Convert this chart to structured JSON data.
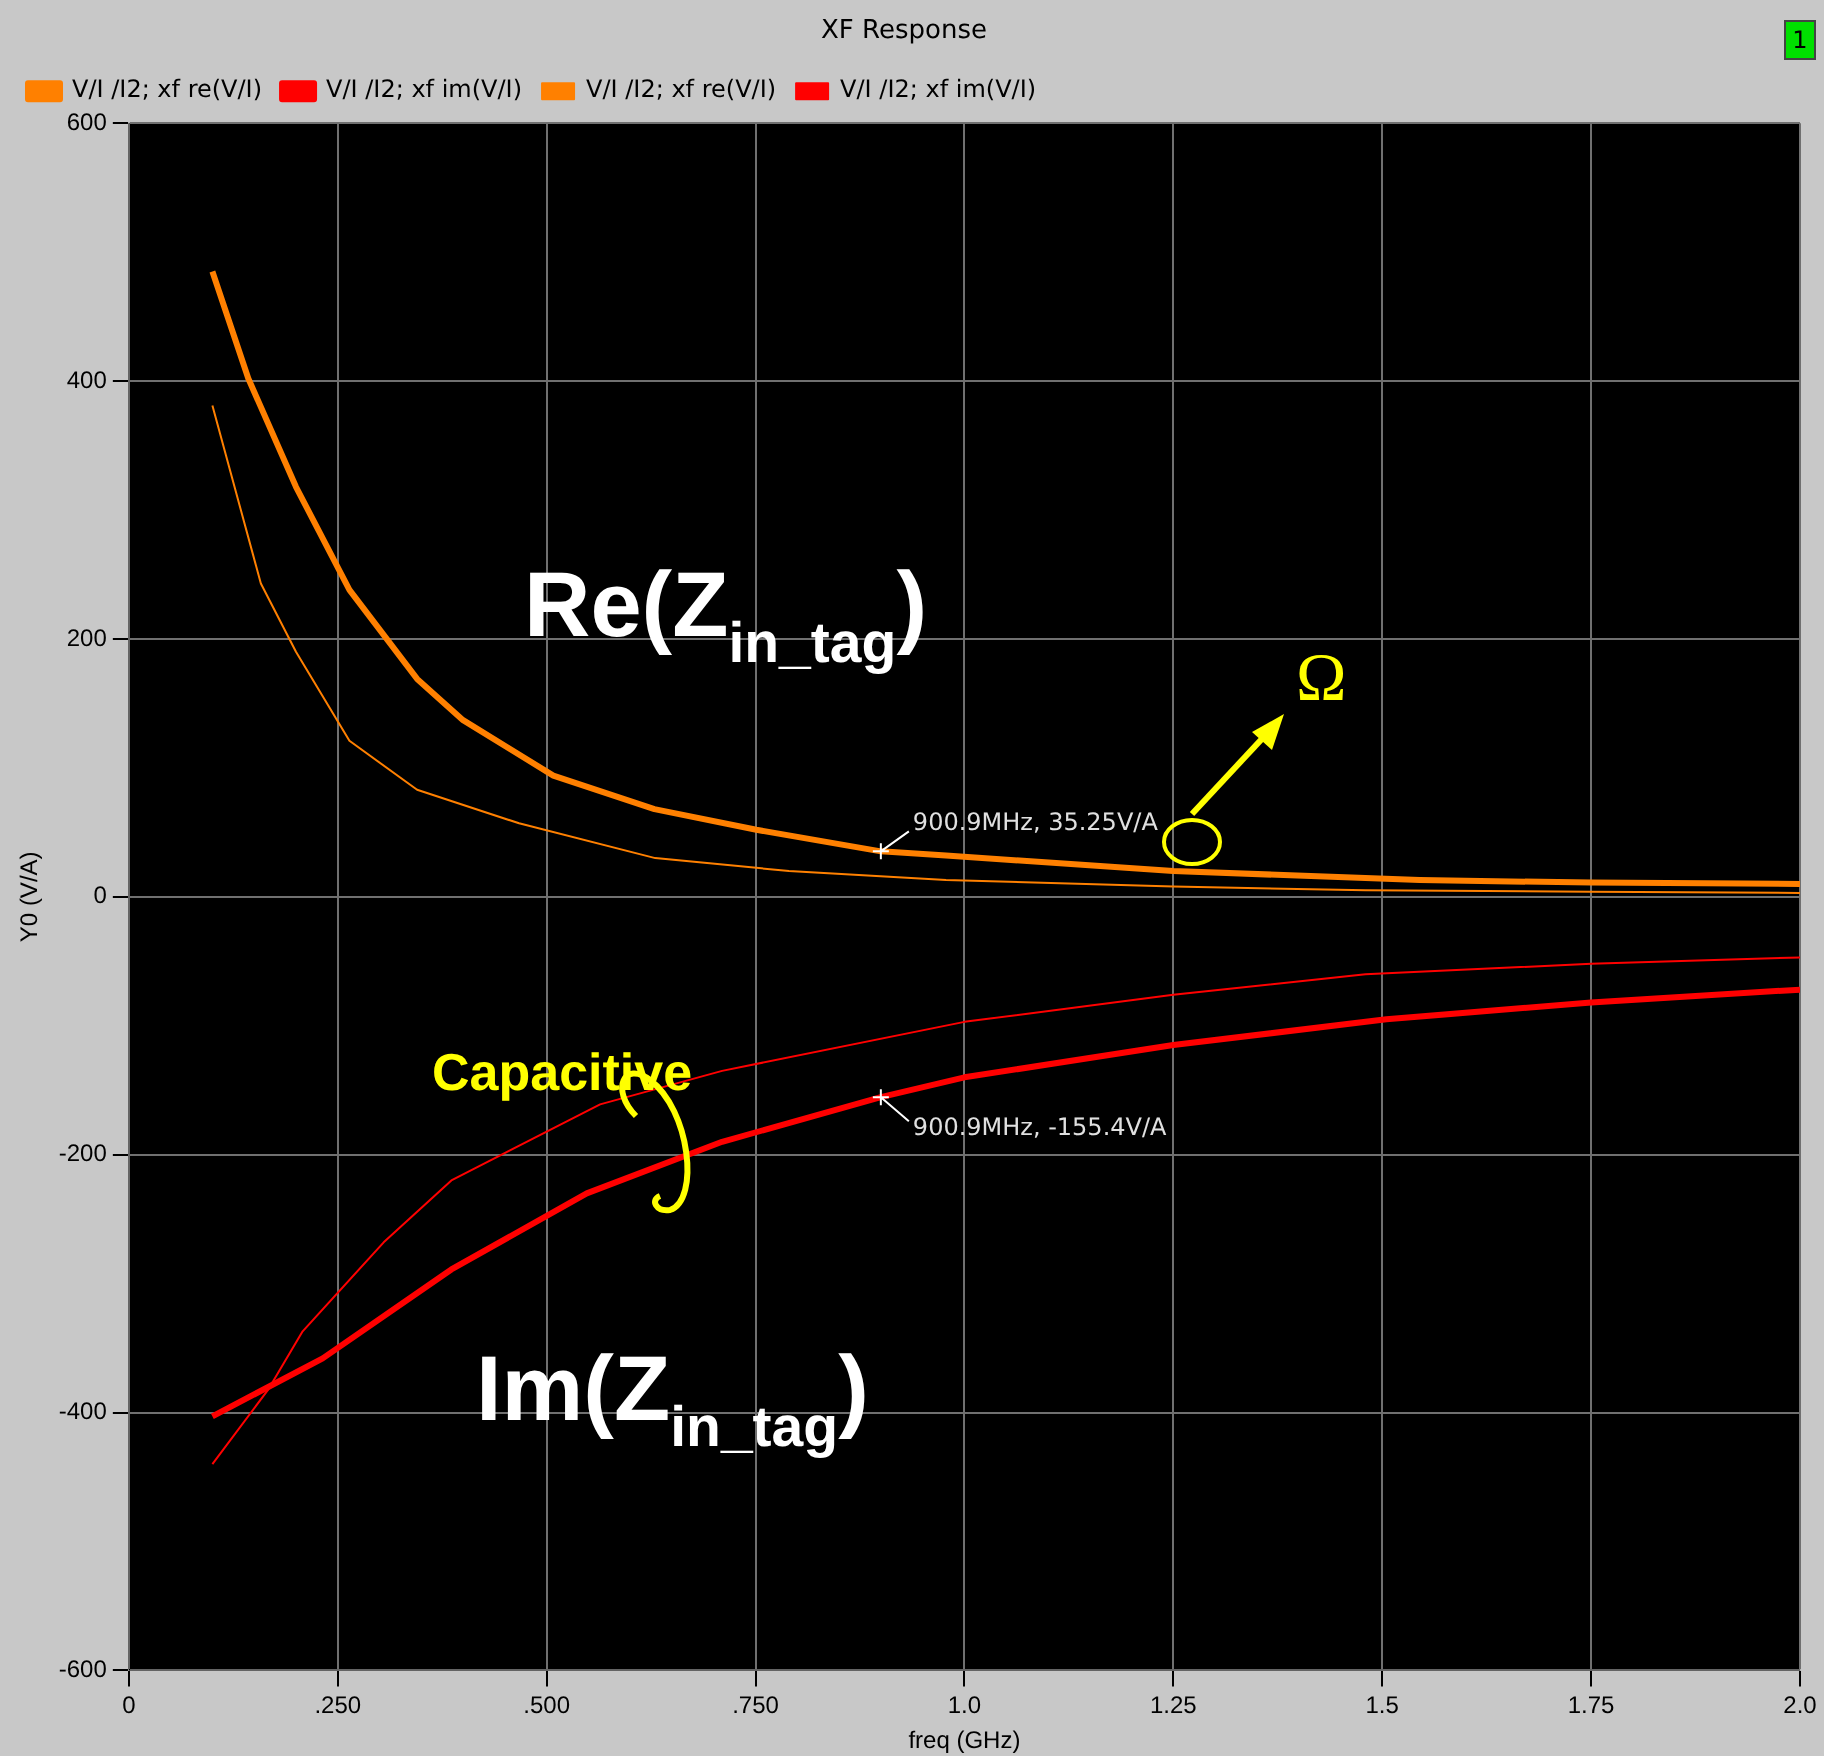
{
  "chart_data": {
    "type": "line",
    "title": "XF Response",
    "xlabel": "freq (GHz)",
    "ylabel": "Y0 (V/A)",
    "xlim": [
      0,
      2.0
    ],
    "xticks": [
      0,
      {
        "value": 0.25,
        "label": ".250"
      },
      {
        "value": 0.5,
        "label": ".500"
      },
      {
        "value": 0.75,
        "label": ".750"
      },
      {
        "value": 1.0,
        "label": "1.0"
      },
      1.25,
      {
        "value": 1.5,
        "label": "1.5"
      },
      1.75,
      {
        "value": 2.0,
        "label": "2.0"
      }
    ],
    "ylim": [
      -600,
      600
    ],
    "yticks": [
      -600,
      -400,
      -200,
      0,
      200,
      400,
      600
    ],
    "grid": true,
    "legend": "top left",
    "marker": "none",
    "line_style": "solid",
    "series": [
      {
        "name": "V/I /I2; xf re(V/I)",
        "color": "#ff8000",
        "x": [
          0.1,
          0.143,
          0.2,
          0.264,
          0.345,
          0.4,
          0.508,
          0.629,
          0.751,
          0.9,
          0.978,
          1.25,
          1.545,
          1.75,
          2.0
        ],
        "values": [
          485,
          402,
          318,
          238,
          169,
          137,
          94,
          68,
          52,
          35.25,
          32,
          20,
          13,
          11,
          10
        ]
      },
      {
        "name": "V/I /I2; xf im(V/I)",
        "color": "#ff0000",
        "x": [
          0.1,
          0.232,
          0.386,
          0.548,
          0.71,
          0.9,
          1.0,
          1.25,
          1.505,
          1.75,
          2.0
        ],
        "values": [
          -403,
          -358,
          -289,
          -230,
          -190,
          -155.4,
          -140,
          -115,
          -95,
          -82,
          -72
        ]
      },
      {
        "name": "V/I /I2; xf re(V/I)",
        "color": "#ff8000",
        "x": [
          0.1,
          0.158,
          0.2,
          0.264,
          0.345,
          0.467,
          0.63,
          0.79,
          0.978,
          1.25,
          1.48,
          1.75,
          2.0
        ],
        "values": [
          381,
          243,
          190,
          121,
          83,
          57,
          30,
          20,
          13,
          8,
          5,
          4,
          3
        ]
      },
      {
        "name": "V/I /I2; xf im(V/I)",
        "color": "#ff0000",
        "x": [
          0.1,
          0.167,
          0.208,
          0.305,
          0.386,
          0.564,
          0.71,
          1.0,
          1.25,
          1.48,
          1.75,
          2.0
        ],
        "values": [
          -440,
          -382,
          -337,
          -268,
          -220,
          -161,
          -135,
          -97,
          -76,
          -60,
          -52,
          -47
        ]
      }
    ],
    "annotations": [
      {
        "text": "900.9MHz, 35.25V/A",
        "x": 0.9,
        "y": 35.25
      },
      {
        "text": "900.9MHz, -155.4V/A",
        "x": 0.9,
        "y": -155.4
      },
      "Re(Z$_{in_tag}$)",
      "Im(Z$_{in_tag}$)",
      "Capacitive",
      "Ω",
      "1"
    ]
  }
}
